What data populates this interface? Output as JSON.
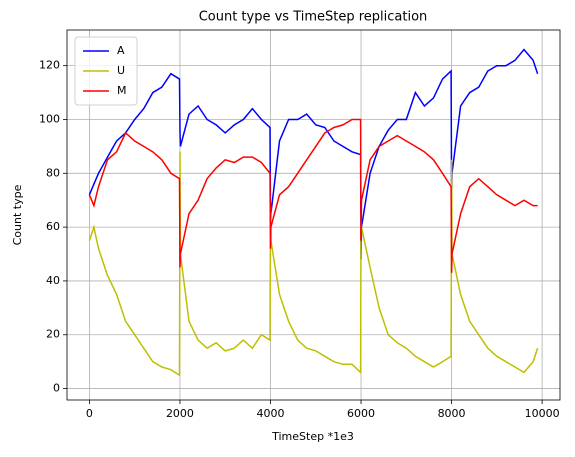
{
  "chart_data": {
    "type": "line",
    "title": "Count type vs TimeStep replication",
    "xlabel": "TimeStep *1e3",
    "ylabel": "Count type",
    "x": [
      0,
      100,
      200,
      400,
      600,
      800,
      1000,
      1200,
      1400,
      1600,
      1800,
      1990,
      2000,
      2010,
      2200,
      2400,
      2600,
      2800,
      3000,
      3200,
      3400,
      3600,
      3800,
      3990,
      4000,
      4010,
      4200,
      4400,
      4600,
      4800,
      5000,
      5200,
      5400,
      5600,
      5800,
      5990,
      6000,
      6010,
      6200,
      6400,
      6600,
      6800,
      7000,
      7200,
      7400,
      7600,
      7800,
      7990,
      8000,
      8010,
      8200,
      8400,
      8600,
      8800,
      9000,
      9200,
      9400,
      9600,
      9800,
      9900
    ],
    "series": [
      {
        "name": "A",
        "color": "#0000ff",
        "values": [
          72,
          76,
          80,
          86,
          92,
          95,
          100,
          104,
          110,
          112,
          117,
          115,
          95,
          90,
          102,
          105,
          100,
          98,
          95,
          98,
          100,
          104,
          100,
          97,
          60,
          65,
          92,
          100,
          100,
          102,
          98,
          97,
          92,
          90,
          88,
          87,
          48,
          60,
          80,
          90,
          96,
          100,
          100,
          110,
          105,
          108,
          115,
          118,
          70,
          80,
          105,
          110,
          112,
          118,
          120,
          120,
          122,
          126,
          122,
          117
        ]
      },
      {
        "name": "U",
        "color": "#bfbf00",
        "values": [
          55,
          60,
          52,
          42,
          35,
          25,
          20,
          15,
          10,
          8,
          7,
          5,
          88,
          50,
          25,
          18,
          15,
          17,
          14,
          15,
          18,
          15,
          20,
          18,
          68,
          55,
          35,
          25,
          18,
          15,
          14,
          12,
          10,
          9,
          9,
          6,
          65,
          60,
          45,
          30,
          20,
          17,
          15,
          12,
          10,
          8,
          10,
          12,
          85,
          50,
          35,
          25,
          20,
          15,
          12,
          10,
          8,
          6,
          10,
          15
        ]
      },
      {
        "name": "M",
        "color": "#ff0000",
        "values": [
          72,
          68,
          75,
          85,
          88,
          95,
          92,
          90,
          88,
          85,
          80,
          78,
          45,
          50,
          65,
          70,
          78,
          82,
          85,
          84,
          86,
          86,
          84,
          80,
          52,
          60,
          72,
          75,
          80,
          85,
          90,
          95,
          97,
          98,
          100,
          100,
          55,
          70,
          85,
          90,
          92,
          94,
          92,
          90,
          88,
          85,
          80,
          75,
          43,
          50,
          65,
          75,
          78,
          75,
          72,
          70,
          68,
          70,
          68,
          68
        ]
      }
    ],
    "xlim": [
      -495,
      10395
    ],
    "ylim": [
      -4.25,
      133.25
    ],
    "xticks": [
      0,
      2000,
      4000,
      6000,
      8000,
      10000
    ],
    "yticks": [
      0,
      20,
      40,
      60,
      80,
      100,
      120
    ],
    "grid": true,
    "legend": "upper left"
  }
}
